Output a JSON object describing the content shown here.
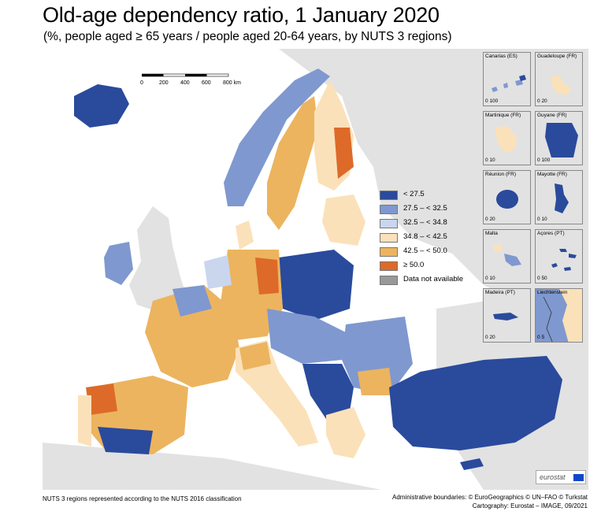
{
  "header": {
    "title": "Old-age dependency ratio, 1 January 2020",
    "subtitle": "(%, people aged ≥ 65 years / people aged 20-64 years, by NUTS 3 regions)"
  },
  "scale": {
    "ticks": [
      "0",
      "200",
      "400",
      "600",
      "800 km"
    ]
  },
  "legend": {
    "items": [
      {
        "label": "< 27.5",
        "color": "#2a4a9c"
      },
      {
        "label": "27.5 – < 32.5",
        "color": "#7f98cf"
      },
      {
        "label": "32.5 – < 34.8",
        "color": "#c9d6ee"
      },
      {
        "label": "34.8 – < 42.5",
        "color": "#fbe1b9"
      },
      {
        "label": "42.5 – < 50.0",
        "color": "#ecb45e"
      },
      {
        "label": "≥ 50.0",
        "color": "#dd6a28"
      },
      {
        "label": "Data not available",
        "color": "#999999"
      }
    ]
  },
  "insets": [
    {
      "label": "Canarias (ES)",
      "scale": [
        "0",
        "100"
      ]
    },
    {
      "label": "Guadeloupe (FR)",
      "scale": [
        "0",
        "20"
      ]
    },
    {
      "label": "Martinique (FR)",
      "scale": [
        "0",
        "10"
      ]
    },
    {
      "label": "Guyane (FR)",
      "scale": [
        "0",
        "100"
      ]
    },
    {
      "label": "Réunion (FR)",
      "scale": [
        "0",
        "20"
      ]
    },
    {
      "label": "Mayotte (FR)",
      "scale": [
        "0",
        "10"
      ]
    },
    {
      "label": "Malta",
      "scale": [
        "0",
        "10"
      ]
    },
    {
      "label": "Açores (PT)",
      "scale": [
        "0",
        "50"
      ]
    },
    {
      "label": "Madeira (PT)",
      "scale": [
        "0",
        "20"
      ]
    },
    {
      "label": "Liechtenstein",
      "scale": [
        "0",
        "5"
      ]
    }
  ],
  "logo": {
    "text": "eurostat",
    "color": "#0e47cb"
  },
  "footer": {
    "left": "NUTS 3 regions represented according to the NUTS 2016 classification",
    "right_line1": "Administrative boundaries: © EuroGeographics © UN–FAO © Turkstat",
    "right_line2": "Cartography: Eurostat – IMAGE, 09/2021"
  },
  "colors": {
    "sea": "#ffffff",
    "non_eu_land": "#e2e2e2",
    "low": "#2a4a9c",
    "mid_low": "#7f98cf",
    "mid": "#c9d6ee",
    "mid_high": "#fbe1b9",
    "high": "#ecb45e",
    "very_high": "#dd6a28"
  }
}
